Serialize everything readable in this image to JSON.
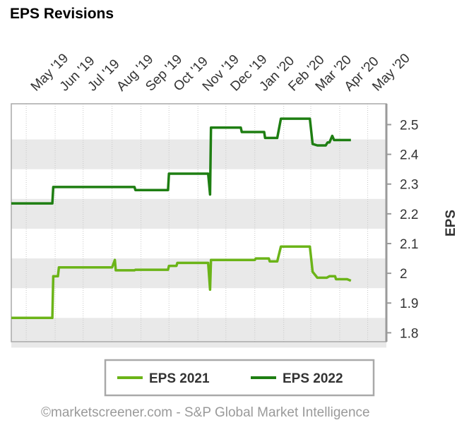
{
  "title": "EPS Revisions",
  "credit": "©marketscreener.com - S&P Global Market Intelligence",
  "chart_data": {
    "type": "line",
    "x_tick_labels": [
      "May '19",
      "Jun '19",
      "Jul '19",
      "Aug '19",
      "Sep '19",
      "Oct '19",
      "Nov '19",
      "Dec '19",
      "Jan '20",
      "Feb '20",
      "Mar '20",
      "Apr '20",
      "May '20"
    ],
    "y_ticks": [
      1.8,
      1.9,
      2,
      2.1,
      2.2,
      2.3,
      2.4,
      2.5
    ],
    "y_tick_labels": [
      "1.8",
      "1.9",
      "2",
      "2.1",
      "2.2",
      "2.3",
      "2.4",
      "2.5"
    ],
    "ylim": [
      1.77,
      2.57
    ],
    "ylabel": "EPS",
    "y_axis_position": "right",
    "grid": true,
    "legend_position": "bottom",
    "series": [
      {
        "name": "EPS 2021",
        "color": "#6bb418",
        "points": [
          [
            "2019-04-15",
            1.85
          ],
          [
            "2019-05-29",
            1.85
          ],
          [
            "2019-05-30",
            1.99
          ],
          [
            "2019-06-04",
            1.99
          ],
          [
            "2019-06-05",
            2.02
          ],
          [
            "2019-08-01",
            2.02
          ],
          [
            "2019-08-04",
            2.045
          ],
          [
            "2019-08-05",
            2.01
          ],
          [
            "2019-08-25",
            2.01
          ],
          [
            "2019-08-26",
            2.012
          ],
          [
            "2019-09-30",
            2.012
          ],
          [
            "2019-10-01",
            2.025
          ],
          [
            "2019-10-09",
            2.025
          ],
          [
            "2019-10-10",
            2.035
          ],
          [
            "2019-11-12",
            2.035
          ],
          [
            "2019-11-14",
            1.945
          ],
          [
            "2019-11-15",
            2.045
          ],
          [
            "2020-01-01",
            2.045
          ],
          [
            "2020-01-02",
            2.05
          ],
          [
            "2020-01-16",
            2.05
          ],
          [
            "2020-01-17",
            2.04
          ],
          [
            "2020-01-25",
            2.04
          ],
          [
            "2020-01-29",
            2.09
          ],
          [
            "2020-02-29",
            2.09
          ],
          [
            "2020-03-03",
            2.005
          ],
          [
            "2020-03-08",
            1.985
          ],
          [
            "2020-03-18",
            1.985
          ],
          [
            "2020-03-21",
            1.99
          ],
          [
            "2020-03-27",
            1.99
          ],
          [
            "2020-03-28",
            1.98
          ],
          [
            "2020-04-09",
            1.98
          ],
          [
            "2020-04-13",
            1.975
          ]
        ]
      },
      {
        "name": "EPS 2022",
        "color": "#1e7e12",
        "points": [
          [
            "2019-04-15",
            2.235
          ],
          [
            "2019-05-29",
            2.235
          ],
          [
            "2019-05-30",
            2.29
          ],
          [
            "2019-08-25",
            2.29
          ],
          [
            "2019-08-26",
            2.28
          ],
          [
            "2019-09-30",
            2.28
          ],
          [
            "2019-10-01",
            2.335
          ],
          [
            "2019-11-12",
            2.335
          ],
          [
            "2019-11-14",
            2.265
          ],
          [
            "2019-11-15",
            2.49
          ],
          [
            "2019-12-17",
            2.49
          ],
          [
            "2019-12-18",
            2.475
          ],
          [
            "2020-01-11",
            2.475
          ],
          [
            "2020-01-12",
            2.455
          ],
          [
            "2020-01-25",
            2.455
          ],
          [
            "2020-01-29",
            2.52
          ],
          [
            "2020-02-29",
            2.52
          ],
          [
            "2020-03-03",
            2.435
          ],
          [
            "2020-03-08",
            2.43
          ],
          [
            "2020-03-17",
            2.43
          ],
          [
            "2020-03-19",
            2.44
          ],
          [
            "2020-03-21",
            2.44
          ],
          [
            "2020-03-24",
            2.462
          ],
          [
            "2020-03-26",
            2.448
          ],
          [
            "2020-04-13",
            2.448
          ]
        ]
      }
    ]
  }
}
